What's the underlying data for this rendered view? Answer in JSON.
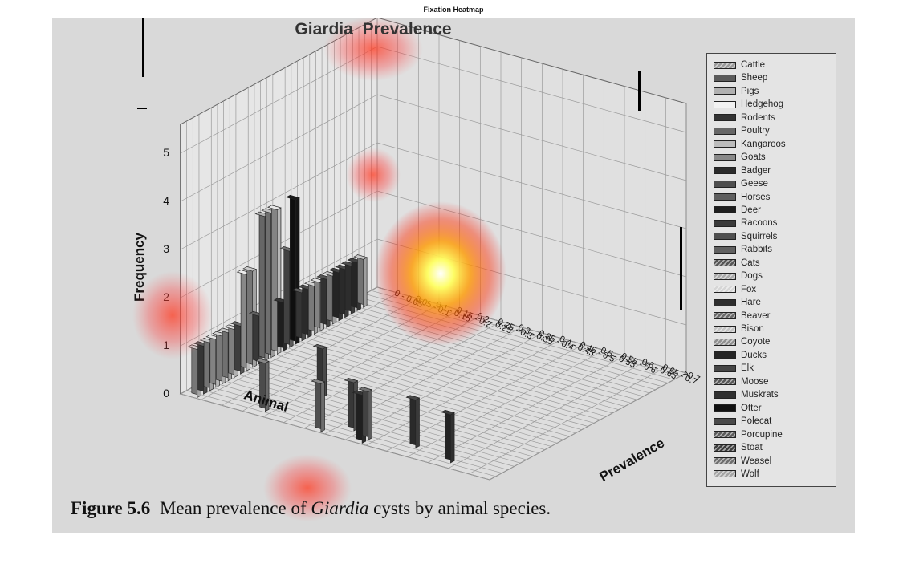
{
  "heading": "Fixation Heatmap",
  "caption": {
    "figure": "Figure 5.6",
    "prefix": "Mean prevalence of",
    "species": "Giardia",
    "suffix": "cysts by animal species."
  },
  "chart_data": {
    "type": "bar",
    "subtype": "3d-bar",
    "title_italic": "Giardia",
    "title_rest": "Prevalence",
    "xlabel": "Animal",
    "ylabel": "Frequency",
    "zlabel": "Prevalence",
    "ylim": [
      0,
      5
    ],
    "yticks": [
      "0",
      "1",
      "2",
      "3",
      "4",
      "5"
    ],
    "prevalence_bins": [
      "0 - 0.05",
      "0.05 - 0.1",
      "0.1 - 0.15",
      "0.15 - 0.2",
      "0.2 - 0.25",
      "0.25 - 0.3",
      "0.3 - 0.35",
      "0.35 - 0.4",
      "0.4 - 0.45",
      "0.45 - 0.5",
      "0.5 - 0.55",
      "0.55 - 0.6",
      "0.6 - 0.65",
      "0.65 - 0.7",
      ">0.7"
    ],
    "grid": true,
    "legend_position": "right",
    "legend": [
      {
        "name": "Cattle",
        "color": "#9a9a9a",
        "hatch": true
      },
      {
        "name": "Sheep",
        "color": "#5a5a5a",
        "hatch": false
      },
      {
        "name": "Pigs",
        "color": "#b0b0b0",
        "hatch": false
      },
      {
        "name": "Hedgehog",
        "color": "#f2f2f2",
        "hatch": false
      },
      {
        "name": "Rodents",
        "color": "#333333",
        "hatch": false
      },
      {
        "name": "Poultry",
        "color": "#666666",
        "hatch": false
      },
      {
        "name": "Kangaroos",
        "color": "#bcbcbc",
        "hatch": false
      },
      {
        "name": "Goats",
        "color": "#8a8a8a",
        "hatch": false
      },
      {
        "name": "Badger",
        "color": "#2b2b2b",
        "hatch": false
      },
      {
        "name": "Geese",
        "color": "#4e4e4e",
        "hatch": false
      },
      {
        "name": "Horses",
        "color": "#5e5e5e",
        "hatch": false
      },
      {
        "name": "Deer",
        "color": "#1e1e1e",
        "hatch": false
      },
      {
        "name": "Racoons",
        "color": "#3a3a3a",
        "hatch": false
      },
      {
        "name": "Squirrels",
        "color": "#505050",
        "hatch": false
      },
      {
        "name": "Rabbits",
        "color": "#606060",
        "hatch": false
      },
      {
        "name": "Cats",
        "color": "#555555",
        "hatch": true
      },
      {
        "name": "Dogs",
        "color": "#aaaaaa",
        "hatch": true
      },
      {
        "name": "Fox",
        "color": "#d6d6d6",
        "hatch": true
      },
      {
        "name": "Hare",
        "color": "#2e2e2e",
        "hatch": false
      },
      {
        "name": "Beaver",
        "color": "#6a6a6a",
        "hatch": true
      },
      {
        "name": "Bison",
        "color": "#c4c4c4",
        "hatch": true
      },
      {
        "name": "Coyote",
        "color": "#909090",
        "hatch": true
      },
      {
        "name": "Ducks",
        "color": "#252525",
        "hatch": false
      },
      {
        "name": "Elk",
        "color": "#454545",
        "hatch": false
      },
      {
        "name": "Moose",
        "color": "#585858",
        "hatch": true
      },
      {
        "name": "Muskrats",
        "color": "#303030",
        "hatch": false
      },
      {
        "name": "Otter",
        "color": "#111111",
        "hatch": false
      },
      {
        "name": "Polecat",
        "color": "#4a4a4a",
        "hatch": false
      },
      {
        "name": "Porcupine",
        "color": "#5c5c5c",
        "hatch": true
      },
      {
        "name": "Stoat",
        "color": "#3e3e3e",
        "hatch": true
      },
      {
        "name": "Weasel",
        "color": "#6e6e6e",
        "hatch": true
      },
      {
        "name": "Wolf",
        "color": "#a4a4a4",
        "hatch": true
      }
    ],
    "bars": [
      {
        "animal": "Cattle",
        "bin": 0,
        "value": 1,
        "color": "#a5a5a5"
      },
      {
        "animal": "Sheep",
        "bin": 0,
        "value": 1,
        "color": "#4a4a4a"
      },
      {
        "animal": "Pigs",
        "bin": 0,
        "value": 1,
        "color": "#a0a0a0"
      },
      {
        "animal": "Hedgehog",
        "bin": 0,
        "value": 1,
        "color": "#b5b5b5"
      },
      {
        "animal": "Rodents",
        "bin": 0,
        "value": 1,
        "color": "#a8a8a8"
      },
      {
        "animal": "Poultry",
        "bin": 0,
        "value": 1,
        "color": "#9c9c9c"
      },
      {
        "animal": "Kangaroos",
        "bin": 0,
        "value": 1,
        "color": "#b0b0b0"
      },
      {
        "animal": "Goats",
        "bin": 0,
        "value": 1,
        "color": "#555555"
      },
      {
        "animal": "Badger",
        "bin": 0,
        "value": 2,
        "color": "#bdbdbd"
      },
      {
        "animal": "Geese",
        "bin": 0,
        "value": 2,
        "color": "#a2a2a2"
      },
      {
        "animal": "Horses",
        "bin": 0,
        "value": 1,
        "color": "#4e4e4e"
      },
      {
        "animal": "Deer",
        "bin": 0,
        "value": 3,
        "color": "#8e8e8e"
      },
      {
        "animal": "Racoons",
        "bin": 0,
        "value": 3,
        "color": "#9a9a9a"
      },
      {
        "animal": "Squirrels",
        "bin": 0,
        "value": 3,
        "color": "#b8b8b8"
      },
      {
        "animal": "Rabbits",
        "bin": 0,
        "value": 1,
        "color": "#2a2a2a"
      },
      {
        "animal": "Cats",
        "bin": 0,
        "value": 2,
        "color": "#5a5a5a"
      },
      {
        "animal": "Dogs",
        "bin": 0,
        "value": 3,
        "color": "#151515"
      },
      {
        "animal": "Fox",
        "bin": 0,
        "value": 1,
        "color": "#4a4a4a"
      },
      {
        "animal": "Hare",
        "bin": 0,
        "value": 1,
        "color": "#3a3a3a"
      },
      {
        "animal": "Beaver",
        "bin": 0,
        "value": 1,
        "color": "#a8a8a8"
      },
      {
        "animal": "Bison",
        "bin": 0,
        "value": 1,
        "color": "#b5b5b5"
      },
      {
        "animal": "Coyote",
        "bin": 0,
        "value": 1,
        "color": "#444444"
      },
      {
        "animal": "Ducks",
        "bin": 0,
        "value": 1,
        "color": "#a0a0a0"
      },
      {
        "animal": "Elk",
        "bin": 0,
        "value": 1,
        "color": "#333333"
      },
      {
        "animal": "Moose",
        "bin": 0,
        "value": 1,
        "color": "#3a3a3a"
      },
      {
        "animal": "Muskrats",
        "bin": 0,
        "value": 1,
        "color": "#3e3e3e"
      },
      {
        "animal": "Otter",
        "bin": 0,
        "value": 1,
        "color": "#333333"
      },
      {
        "animal": "Polecat",
        "bin": 0,
        "value": 1,
        "color": "#a0a0a0"
      },
      {
        "animal": "Sheep",
        "bin": 3,
        "value": 1,
        "color": "#6a6a6a"
      },
      {
        "animal": "Goats",
        "bin": 4,
        "value": 1,
        "color": "#4a4a4a"
      },
      {
        "animal": "Cattle",
        "bin": 6,
        "value": 1,
        "color": "#6c6c6c"
      },
      {
        "animal": "Pigs",
        "bin": 7,
        "value": 1,
        "color": "#4e4e4e"
      },
      {
        "animal": "Sheep",
        "bin": 8,
        "value": 1,
        "color": "#5c5c5c"
      },
      {
        "animal": "Cattle",
        "bin": 8,
        "value": 1,
        "color": "#2c2c2c"
      },
      {
        "animal": "Pigs",
        "bin": 10,
        "value": 1,
        "color": "#3a3a3a"
      },
      {
        "animal": "Sheep",
        "bin": 12,
        "value": 1,
        "color": "#303030"
      }
    ]
  },
  "legend_order_note": "",
  "markers": []
}
